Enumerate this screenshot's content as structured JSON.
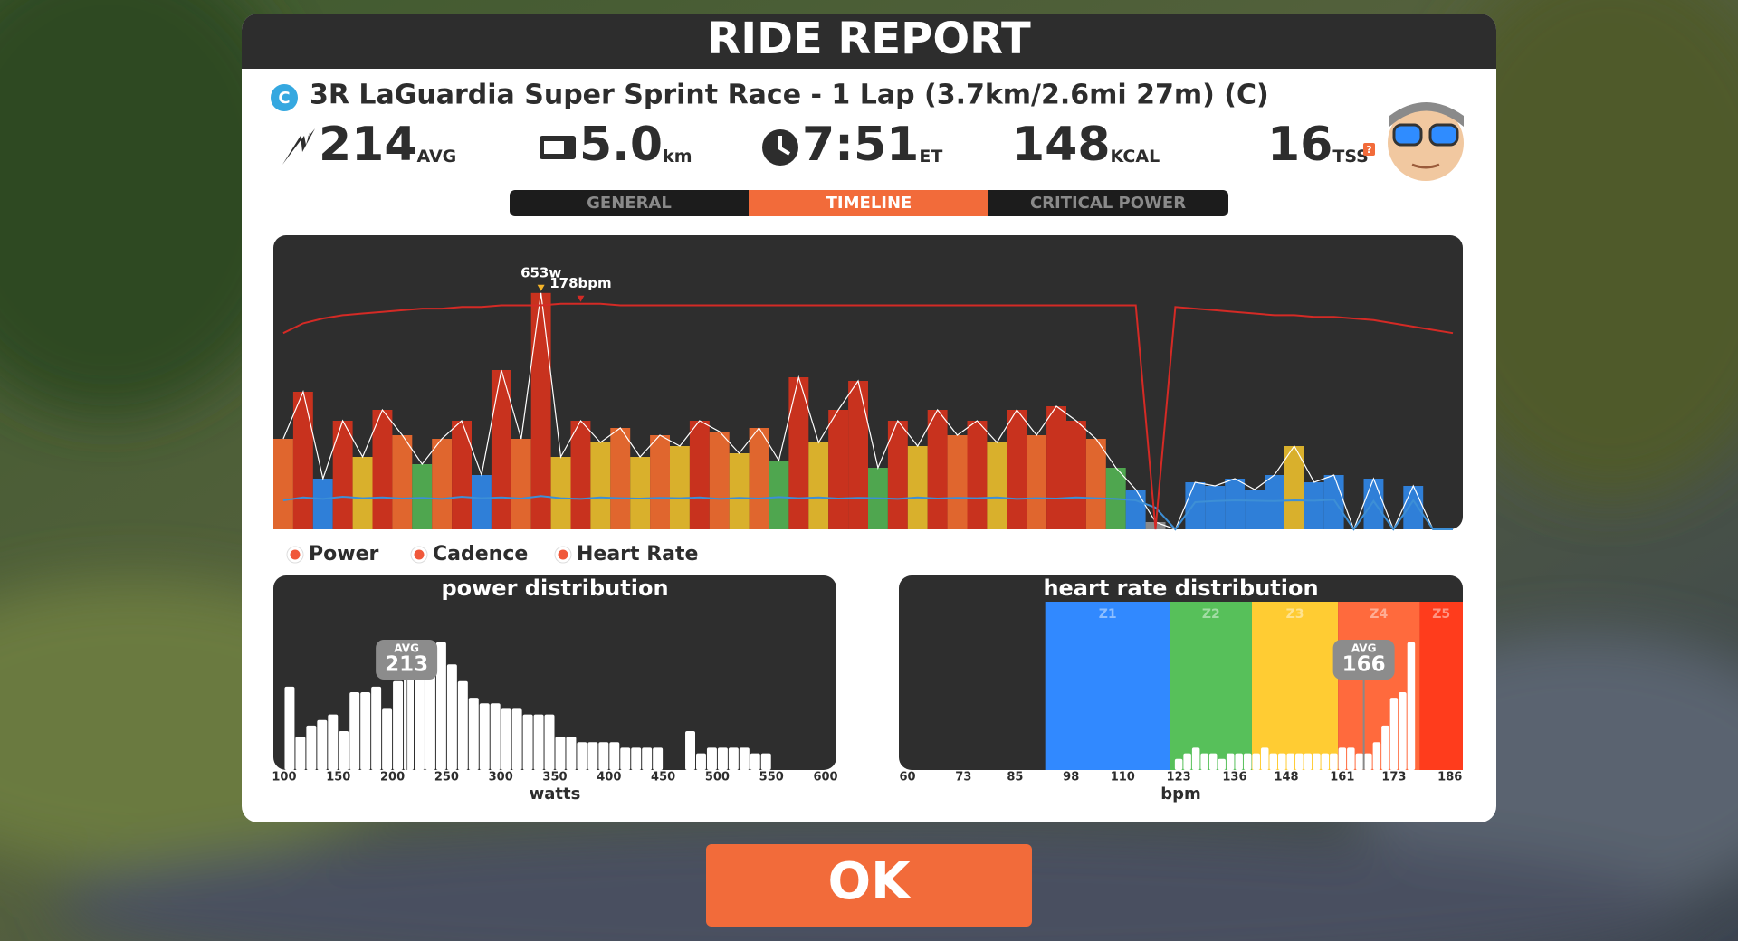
{
  "header": {
    "title": "RIDE REPORT"
  },
  "event": {
    "badge": "C",
    "name": "3R LaGuardia Super Sprint Race - 1 Lap (3.7km/2.6mi 27m) (C)"
  },
  "stats": [
    {
      "value": 214,
      "unit": "AVG"
    },
    {
      "value": "5.0",
      "unit": "km"
    },
    {
      "value": "7:51",
      "unit": "ET"
    },
    {
      "value": 148,
      "unit": "KCAL"
    },
    {
      "value": 16,
      "unit": "TSS",
      "help": "?"
    }
  ],
  "tabs": [
    "GENERAL",
    "TIMELINE",
    "CRITICAL POWER"
  ],
  "button": "OK",
  "chart_data": [
    {
      "type": "timeline",
      "ylim": [
        0,
        700
      ],
      "y2lim": [
        40,
        195
      ],
      "power_zones": [
        {
          "from": 0,
          "color": "#8a8a8a"
        },
        {
          "from": 110,
          "color": "#2f7fd8"
        },
        {
          "from": 160,
          "color": "#4fa64f"
        },
        {
          "from": 200,
          "color": "#d9b02c"
        },
        {
          "from": 250,
          "color": "#e0662e"
        },
        {
          "from": 300,
          "color": "#c8321e"
        }
      ],
      "series": [
        {
          "name": "Power",
          "style": "zone-bars",
          "color": "#ffffff",
          "values": [
            250,
            380,
            140,
            300,
            200,
            330,
            260,
            180,
            250,
            300,
            150,
            440,
            250,
            653,
            200,
            300,
            240,
            280,
            200,
            260,
            230,
            300,
            270,
            210,
            280,
            190,
            420,
            240,
            330,
            410,
            170,
            300,
            230,
            330,
            260,
            300,
            240,
            330,
            260,
            340,
            300,
            250,
            170,
            110,
            20,
            0,
            130,
            120,
            140,
            110,
            150,
            230,
            130,
            150,
            0,
            140,
            0,
            120,
            0,
            0
          ],
          "value_labels": [
            null,
            null,
            null,
            null,
            null,
            null,
            null,
            null,
            null,
            null,
            null,
            null,
            null,
            "653w",
            null,
            null,
            null,
            null,
            null,
            null,
            null,
            null,
            null,
            null,
            null,
            null,
            null,
            null,
            null,
            null,
            null,
            null,
            null,
            null,
            null,
            null,
            null,
            null,
            null,
            null,
            null,
            null,
            null,
            null,
            null,
            null,
            null,
            null,
            null,
            null,
            null,
            null,
            null,
            null,
            null,
            null,
            null,
            null,
            null,
            null
          ],
          "marker_color": "#f5b429"
        },
        {
          "name": "Cadence",
          "style": "line",
          "color": "#3d8fd6",
          "values": [
            80,
            88,
            84,
            90,
            86,
            88,
            85,
            87,
            84,
            90,
            86,
            88,
            85,
            92,
            86,
            84,
            88,
            86,
            85,
            87,
            86,
            88,
            84,
            87,
            85,
            89,
            86,
            88,
            85,
            87,
            86,
            84,
            88,
            85,
            87,
            86,
            88,
            84,
            86,
            85,
            88,
            86,
            84,
            80,
            60,
            0,
            75,
            78,
            80,
            79,
            78,
            80,
            79,
            82,
            0,
            78,
            0,
            80,
            0,
            0
          ]
        },
        {
          "name": "Heart Rate",
          "style": "line",
          "axis": "y2",
          "color": "#d42a25",
          "values": [
            160,
            166,
            169,
            171,
            172,
            173,
            174,
            175,
            175,
            176,
            176,
            177,
            177,
            177,
            178,
            178,
            178,
            177,
            177,
            177,
            177,
            177,
            177,
            177,
            177,
            177,
            177,
            177,
            177,
            177,
            177,
            177,
            177,
            177,
            177,
            177,
            177,
            177,
            177,
            177,
            177,
            177,
            177,
            177,
            40,
            176,
            175,
            174,
            173,
            172,
            171,
            171,
            170,
            170,
            169,
            168,
            166,
            164,
            162,
            160
          ],
          "value_labels": [
            null,
            null,
            null,
            null,
            null,
            null,
            null,
            null,
            null,
            null,
            null,
            null,
            null,
            null,
            null,
            "178bpm",
            null,
            null,
            null,
            null,
            null,
            null,
            null,
            null,
            null,
            null,
            null,
            null,
            null,
            null,
            null,
            null,
            null,
            null,
            null,
            null,
            null,
            null,
            null,
            null,
            null,
            null,
            null,
            null,
            null,
            null,
            null,
            null,
            null,
            null,
            null,
            null,
            null,
            null,
            null,
            null,
            null,
            null,
            null,
            null
          ],
          "marker_color": "#d42a25"
        }
      ]
    },
    {
      "type": "histogram",
      "title": "power distribution",
      "xlabel": "watts",
      "color": "#ffffff",
      "bins": [
        100,
        110,
        120,
        130,
        140,
        150,
        160,
        170,
        180,
        190,
        200,
        210,
        220,
        230,
        240,
        250,
        260,
        270,
        280,
        290,
        300,
        310,
        320,
        330,
        340,
        350,
        360,
        370,
        380,
        390,
        400,
        410,
        420,
        430,
        440,
        450,
        460,
        470,
        480,
        490,
        500,
        510,
        520,
        530,
        540,
        550
      ],
      "values": [
        15,
        6,
        8,
        9,
        10,
        7,
        14,
        14,
        15,
        11,
        16,
        17,
        19,
        23,
        23,
        19,
        16,
        13,
        12,
        12,
        11,
        11,
        10,
        10,
        10,
        6,
        6,
        5,
        5,
        5,
        5,
        4,
        4,
        4,
        4,
        0,
        0,
        7,
        3,
        4,
        4,
        4,
        4,
        3,
        3
      ],
      "xlim": [
        90,
        610
      ],
      "xticks": [
        100,
        150,
        200,
        250,
        300,
        350,
        400,
        450,
        500,
        550,
        600
      ],
      "ylim": [
        0,
        35
      ],
      "avg": 213,
      "avg_label": "AVG"
    },
    {
      "type": "histogram",
      "title": "heart rate distribution",
      "xlabel": "bpm",
      "color": "#ffffff",
      "bins": [
        122,
        124,
        126,
        128,
        130,
        132,
        134,
        136,
        138,
        140,
        142,
        144,
        146,
        148,
        150,
        152,
        154,
        156,
        158,
        160,
        162,
        164,
        166,
        168,
        170,
        172,
        174,
        176,
        178
      ],
      "values": [
        2,
        3,
        4,
        3,
        3,
        2,
        3,
        3,
        3,
        3,
        4,
        3,
        3,
        3,
        3,
        3,
        3,
        3,
        3,
        4,
        4,
        3,
        3,
        5,
        8,
        13,
        14,
        23
      ],
      "xlim": [
        58,
        189
      ],
      "xticks": [
        60,
        73,
        85,
        98,
        110,
        123,
        136,
        148,
        161,
        173,
        186
      ],
      "ylim": [
        0,
        35
      ],
      "zones": [
        {
          "label": "Z1",
          "from": 92,
          "to": 121,
          "color": "#3189ff"
        },
        {
          "label": "Z2",
          "from": 121,
          "to": 140,
          "color": "#57c05a"
        },
        {
          "label": "Z3",
          "from": 140,
          "to": 160,
          "color": "#ffcc33"
        },
        {
          "label": "Z4",
          "from": 160,
          "to": 179,
          "color": "#ff6a3d"
        },
        {
          "label": "Z5",
          "from": 179,
          "to": 189,
          "color": "#ff3c1c"
        }
      ],
      "avg": 166,
      "avg_label": "AVG"
    }
  ]
}
